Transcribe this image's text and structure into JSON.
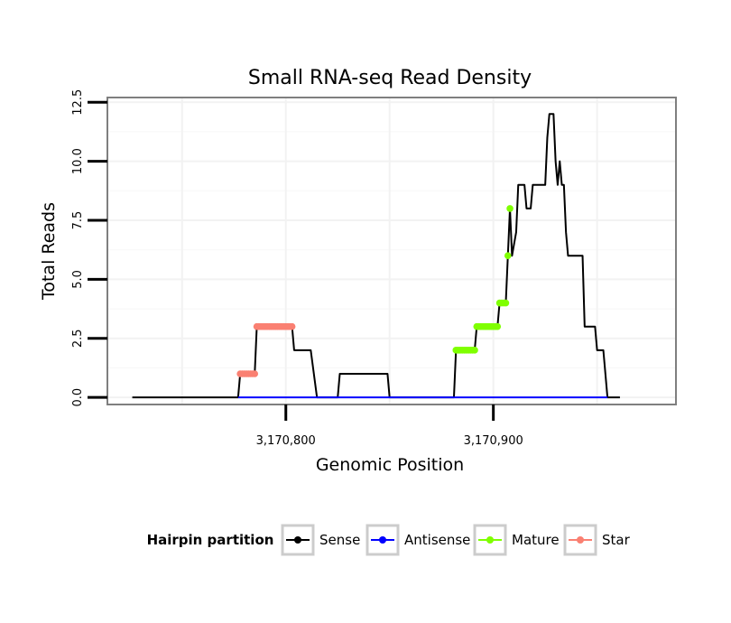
{
  "chart_data": {
    "type": "line",
    "title": "Small RNA-seq Read Density",
    "xlabel": "Genomic Position",
    "ylabel": "Total Reads",
    "xlim": [
      3170714,
      3170988
    ],
    "ylim": [
      -0.3,
      12.7
    ],
    "x_ticks": [
      {
        "value": 3170800,
        "label": "3,170,800"
      },
      {
        "value": 3170900,
        "label": "3,170,900"
      }
    ],
    "y_ticks": [
      {
        "value": 0,
        "label": "0.0"
      },
      {
        "value": 2.5,
        "label": "2.5"
      },
      {
        "value": 5,
        "label": "5.0"
      },
      {
        "value": 7.5,
        "label": "7.5"
      },
      {
        "value": 10,
        "label": "10.0"
      },
      {
        "value": 12.5,
        "label": "12.5"
      }
    ],
    "legend": {
      "title": "Hairpin partition",
      "position": "bottom",
      "entries": [
        {
          "label": "Sense",
          "color": "#000000"
        },
        {
          "label": "Antisense",
          "color": "#0000ff"
        },
        {
          "label": "Mature",
          "color": "#7fff00"
        },
        {
          "label": "Star",
          "color": "#fa8072"
        }
      ]
    },
    "series": [
      {
        "name": "Sense",
        "color": "#000000",
        "points": [
          [
            3170726,
            0
          ],
          [
            3170777,
            0
          ],
          [
            3170778,
            1
          ],
          [
            3170785,
            1
          ],
          [
            3170786,
            3
          ],
          [
            3170803,
            3
          ],
          [
            3170804,
            2
          ],
          [
            3170812,
            2
          ],
          [
            3170815,
            0
          ],
          [
            3170825,
            0
          ],
          [
            3170826,
            1
          ],
          [
            3170849,
            1
          ],
          [
            3170850,
            0
          ],
          [
            3170881,
            0
          ],
          [
            3170882,
            2
          ],
          [
            3170891,
            2
          ],
          [
            3170892,
            3
          ],
          [
            3170902,
            3
          ],
          [
            3170903,
            4
          ],
          [
            3170906,
            4
          ],
          [
            3170907,
            6
          ],
          [
            3170908,
            8
          ],
          [
            3170909,
            6
          ],
          [
            3170911,
            7
          ],
          [
            3170912,
            9
          ],
          [
            3170915,
            9
          ],
          [
            3170916,
            8
          ],
          [
            3170918,
            8
          ],
          [
            3170919,
            9
          ],
          [
            3170925,
            9
          ],
          [
            3170926,
            11
          ],
          [
            3170927,
            12
          ],
          [
            3170929,
            12
          ],
          [
            3170930,
            10
          ],
          [
            3170931,
            9
          ],
          [
            3170932,
            10
          ],
          [
            3170933,
            9
          ],
          [
            3170934,
            9
          ],
          [
            3170935,
            7
          ],
          [
            3170936,
            6
          ],
          [
            3170943,
            6
          ],
          [
            3170944,
            3
          ],
          [
            3170949,
            3
          ],
          [
            3170950,
            2
          ],
          [
            3170953,
            2
          ],
          [
            3170955,
            0
          ],
          [
            3170961,
            0
          ]
        ]
      },
      {
        "name": "Antisense",
        "color": "#0000ff",
        "points": [
          [
            3170777,
            0
          ],
          [
            3170955,
            0
          ]
        ]
      },
      {
        "name": "Mature",
        "color": "#7fff00",
        "points": [
          [
            3170882,
            2
          ],
          [
            3170883,
            2
          ],
          [
            3170884,
            2
          ],
          [
            3170885,
            2
          ],
          [
            3170886,
            2
          ],
          [
            3170887,
            2
          ],
          [
            3170888,
            2
          ],
          [
            3170889,
            2
          ],
          [
            3170890,
            2
          ],
          [
            3170891,
            2
          ],
          [
            3170892,
            3
          ],
          [
            3170893,
            3
          ],
          [
            3170894,
            3
          ],
          [
            3170895,
            3
          ],
          [
            3170896,
            3
          ],
          [
            3170897,
            3
          ],
          [
            3170898,
            3
          ],
          [
            3170899,
            3
          ],
          [
            3170900,
            3
          ],
          [
            3170901,
            3
          ],
          [
            3170902,
            3
          ],
          [
            3170903,
            4
          ],
          [
            3170904,
            4
          ],
          [
            3170905,
            4
          ],
          [
            3170906,
            4
          ],
          [
            3170907,
            6
          ],
          [
            3170908,
            8
          ]
        ]
      },
      {
        "name": "Star",
        "color": "#fa8072",
        "points": [
          [
            3170778,
            1
          ],
          [
            3170779,
            1
          ],
          [
            3170780,
            1
          ],
          [
            3170781,
            1
          ],
          [
            3170782,
            1
          ],
          [
            3170783,
            1
          ],
          [
            3170784,
            1
          ],
          [
            3170785,
            1
          ],
          [
            3170786,
            3
          ],
          [
            3170787,
            3
          ],
          [
            3170788,
            3
          ],
          [
            3170789,
            3
          ],
          [
            3170790,
            3
          ],
          [
            3170791,
            3
          ],
          [
            3170792,
            3
          ],
          [
            3170793,
            3
          ],
          [
            3170794,
            3
          ],
          [
            3170795,
            3
          ],
          [
            3170796,
            3
          ],
          [
            3170797,
            3
          ],
          [
            3170798,
            3
          ],
          [
            3170799,
            3
          ],
          [
            3170800,
            3
          ],
          [
            3170801,
            3
          ],
          [
            3170802,
            3
          ],
          [
            3170803,
            3
          ]
        ]
      }
    ]
  }
}
